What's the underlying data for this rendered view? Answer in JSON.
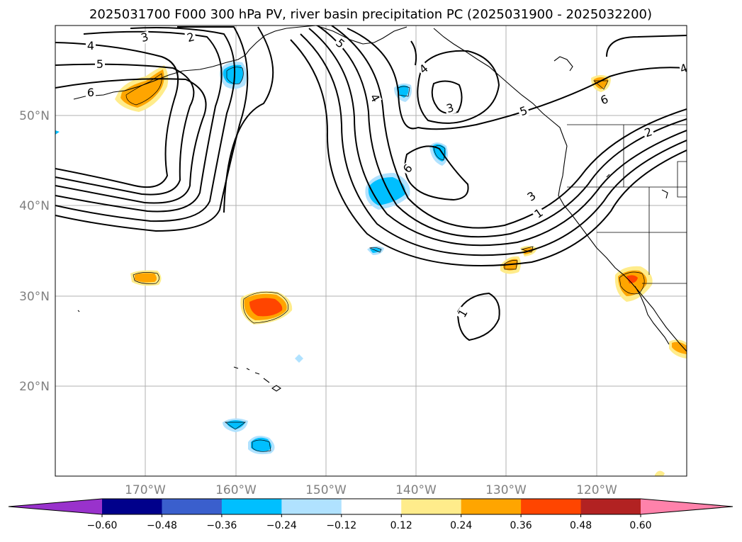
{
  "title": "2025031700 F000 300 hPa PV, river basin precipitation PC (2025031900 - 2025032200)",
  "lon_ticks": [
    "170°W",
    "160°W",
    "150°W",
    "140°W",
    "130°W",
    "120°W"
  ],
  "lat_ticks": [
    "50°N",
    "40°N",
    "30°N",
    "20°N"
  ],
  "colorbar": {
    "colors": [
      "#9932cc",
      "#00008b",
      "#3a5fcd",
      "#00bfff",
      "#b0e2ff",
      "#ffffff",
      "#ffec8b",
      "#ffa500",
      "#ff4500",
      "#b22222",
      "#ff82ab"
    ],
    "tick_labels": [
      "−0.60",
      "−0.48",
      "−0.36",
      "−0.24",
      "−0.12",
      "0.12",
      "0.24",
      "0.36",
      "0.48",
      "0.60"
    ]
  },
  "contour_labels": [
    "4",
    "3",
    "2",
    "5",
    "6",
    "5",
    "4",
    "4",
    "3",
    "6",
    "5",
    "6",
    "2",
    "3",
    "1",
    "1",
    "4"
  ],
  "map": {
    "projection": "PlateCarree",
    "lon_range": [
      -180,
      -110
    ],
    "lat_range": [
      10,
      60
    ],
    "field": "300 hPa PV",
    "shading": "river basin precipitation PC"
  }
}
